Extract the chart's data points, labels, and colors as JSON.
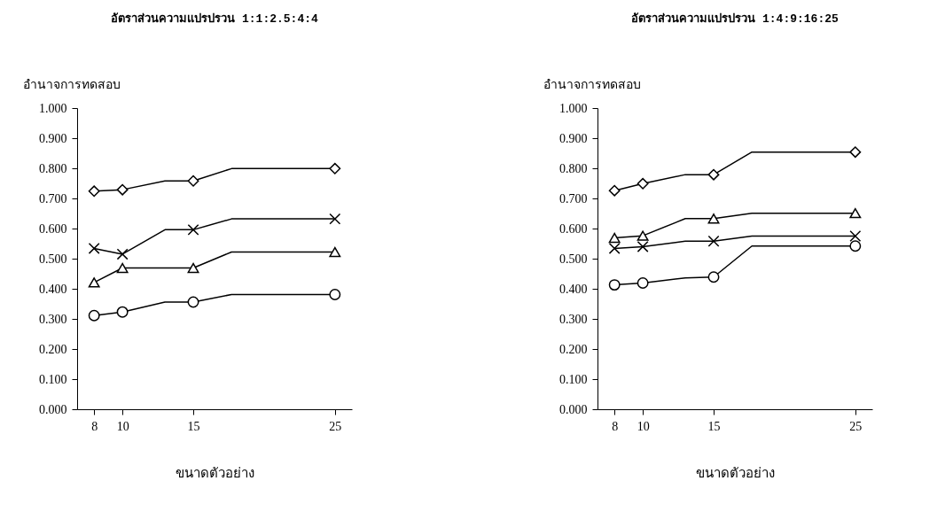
{
  "chart_data": [
    {
      "type": "line",
      "title": "อัตราส่วนความแปรปรวน 1:1:2.5:4:4",
      "xlabel": "ขนาดตัวอย่าง",
      "ylabel": "อำนาจการทดสอบ",
      "xlim": [
        6.8,
        26.2
      ],
      "xticks": [
        8,
        10,
        15,
        25
      ],
      "ylim": [
        0,
        1
      ],
      "yticks": [
        {
          "value": 0,
          "label": "0.000"
        },
        {
          "value": 0.1,
          "label": "0.100"
        },
        {
          "value": 0.2,
          "label": "0.200"
        },
        {
          "value": 0.3,
          "label": "0.300"
        },
        {
          "value": 0.4,
          "label": "0.400"
        },
        {
          "value": 0.5,
          "label": "0.500"
        },
        {
          "value": 0.6,
          "label": "0.600"
        },
        {
          "value": 0.7,
          "label": "0.700"
        },
        {
          "value": 0.8,
          "label": "0.800"
        },
        {
          "value": 0.9,
          "label": "0.900"
        },
        {
          "value": 1,
          "label": "1.000"
        }
      ],
      "series": [
        {
          "marker": "none",
          "color": "#000000",
          "x": [
            8,
            10,
            13,
            15,
            17.7,
            25
          ],
          "values": [
            0.724,
            0.729,
            0.758,
            0.758,
            0.799,
            0.799
          ]
        },
        {
          "marker": "none",
          "color": "#000000",
          "x": [
            8,
            10,
            13,
            15,
            17.7,
            25
          ],
          "values": [
            0.534,
            0.515,
            0.596,
            0.596,
            0.632,
            0.632
          ]
        },
        {
          "marker": "none",
          "color": "#000000",
          "x": [
            8,
            10,
            13,
            15,
            17.7,
            25
          ],
          "values": [
            0.421,
            0.469,
            0.469,
            0.469,
            0.522,
            0.522
          ]
        },
        {
          "marker": "none",
          "color": "#000000",
          "x": [
            8,
            10,
            13,
            15,
            17.7,
            25
          ],
          "values": [
            0.311,
            0.323,
            0.356,
            0.356,
            0.381,
            0.381
          ]
        },
        {
          "type": "scatter",
          "marker": "diamond",
          "color": "#000000",
          "x": [
            8,
            10,
            15,
            25
          ],
          "values": [
            0.724,
            0.729,
            0.758,
            0.799
          ]
        },
        {
          "type": "scatter",
          "marker": "cross",
          "color": "#000000",
          "x": [
            8,
            10,
            15,
            25
          ],
          "values": [
            0.534,
            0.515,
            0.596,
            0.632
          ]
        },
        {
          "type": "scatter",
          "marker": "triangle",
          "color": "#000000",
          "x": [
            8,
            10,
            15,
            25
          ],
          "values": [
            0.421,
            0.469,
            0.469,
            0.522
          ]
        },
        {
          "type": "scatter",
          "marker": "circle",
          "color": "#000000",
          "x": [
            8,
            10,
            15,
            25
          ],
          "values": [
            0.311,
            0.323,
            0.356,
            0.381
          ]
        }
      ]
    },
    {
      "type": "line",
      "title": "อัตราส่วนความแปรปรวน 1:4:9:16:25",
      "xlabel": "ขนาดตัวอย่าง",
      "ylabel": "อำนาจการทดสอบ",
      "xlim": [
        6.8,
        26.2
      ],
      "xticks": [
        8,
        10,
        15,
        25
      ],
      "ylim": [
        0,
        1
      ],
      "yticks": [
        {
          "value": 0,
          "label": "0.000"
        },
        {
          "value": 0.1,
          "label": "0.100"
        },
        {
          "value": 0.2,
          "label": "0.200"
        },
        {
          "value": 0.3,
          "label": "0.300"
        },
        {
          "value": 0.4,
          "label": "0.400"
        },
        {
          "value": 0.5,
          "label": "0.500"
        },
        {
          "value": 0.6,
          "label": "0.600"
        },
        {
          "value": 0.7,
          "label": "0.700"
        },
        {
          "value": 0.8,
          "label": "0.800"
        },
        {
          "value": 0.9,
          "label": "0.900"
        },
        {
          "value": 1,
          "label": "1.000"
        }
      ],
      "series": [
        {
          "marker": "none",
          "color": "#000000",
          "x": [
            8,
            10,
            13,
            15,
            17.7,
            25
          ],
          "values": [
            0.726,
            0.749,
            0.779,
            0.779,
            0.854,
            0.854
          ]
        },
        {
          "marker": "none",
          "color": "#000000",
          "x": [
            8,
            10,
            13,
            15,
            17.7,
            25
          ],
          "values": [
            0.569,
            0.576,
            0.633,
            0.633,
            0.651,
            0.651
          ]
        },
        {
          "marker": "none",
          "color": "#000000",
          "x": [
            8,
            10,
            13,
            15,
            17.7,
            25
          ],
          "values": [
            0.534,
            0.54,
            0.558,
            0.558,
            0.575,
            0.575
          ]
        },
        {
          "marker": "none",
          "color": "#000000",
          "x": [
            8,
            10,
            13,
            15,
            17.7,
            25
          ],
          "values": [
            0.413,
            0.419,
            0.436,
            0.439,
            0.542,
            0.542
          ]
        },
        {
          "type": "scatter",
          "marker": "diamond",
          "color": "#000000",
          "x": [
            8,
            10,
            15,
            25
          ],
          "values": [
            0.726,
            0.749,
            0.779,
            0.854
          ]
        },
        {
          "type": "scatter",
          "marker": "triangle",
          "color": "#000000",
          "x": [
            8,
            10,
            15,
            25
          ],
          "values": [
            0.569,
            0.576,
            0.633,
            0.651
          ]
        },
        {
          "type": "scatter",
          "marker": "cross",
          "color": "#000000",
          "x": [
            8,
            10,
            15,
            25
          ],
          "values": [
            0.534,
            0.54,
            0.558,
            0.575
          ]
        },
        {
          "type": "scatter",
          "marker": "circle",
          "color": "#000000",
          "x": [
            8,
            10,
            15,
            25
          ],
          "values": [
            0.413,
            0.419,
            0.439,
            0.542
          ]
        }
      ]
    }
  ]
}
